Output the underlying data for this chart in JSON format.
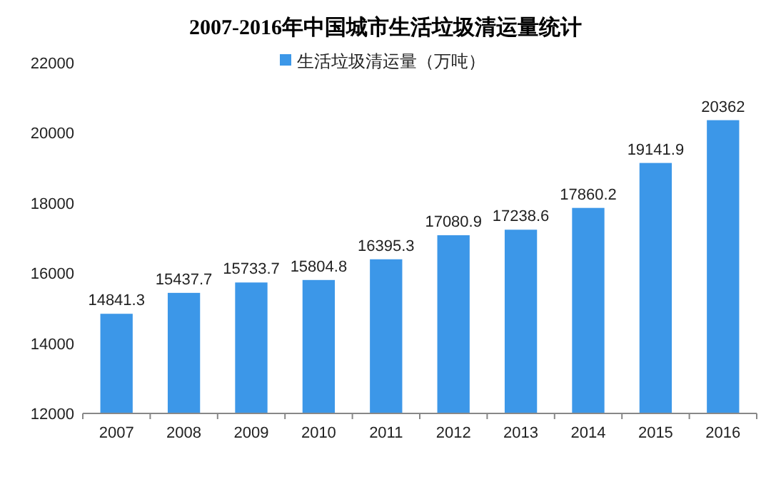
{
  "chart_data": {
    "type": "bar",
    "title": "2007-2016年中国城市生活垃圾清运量统计",
    "categories": [
      "2007",
      "2008",
      "2009",
      "2010",
      "2011",
      "2012",
      "2013",
      "2014",
      "2015",
      "2016"
    ],
    "series": [
      {
        "name": "生活垃圾清运量（万吨）",
        "color": "#3c97e8",
        "values": [
          14841.3,
          15437.7,
          15733.7,
          15804.8,
          16395.3,
          17080.9,
          17238.6,
          17860.2,
          19141.9,
          20362
        ]
      }
    ],
    "ylim": [
      12000,
      22000
    ],
    "yticks": [
      12000,
      14000,
      16000,
      18000,
      20000,
      22000
    ],
    "data_labels": true,
    "legend": "top"
  }
}
